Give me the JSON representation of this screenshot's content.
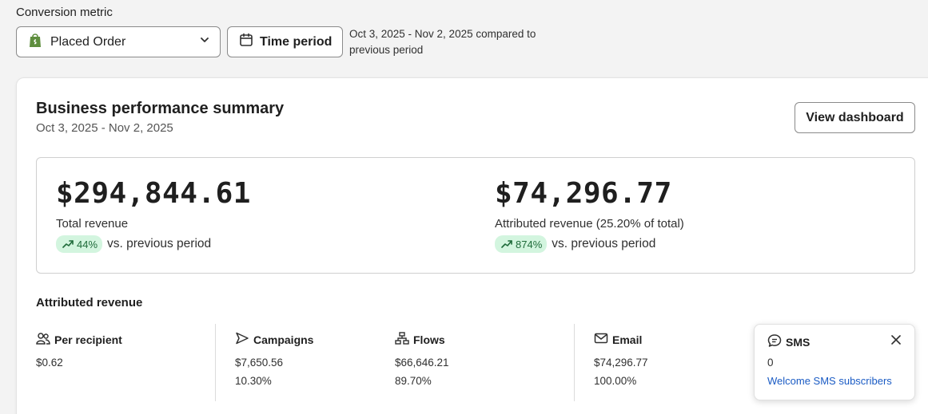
{
  "header": {
    "conversion_label": "Conversion metric",
    "metric_select": {
      "value": "Placed Order",
      "icon": "shopify-bag-icon"
    },
    "time_period_button": "Time period",
    "period_description": "Oct 3, 2025 - Nov 2, 2025 compared to previous period"
  },
  "card": {
    "title": "Business performance summary",
    "subtitle": "Oct 3, 2025 - Nov 2, 2025",
    "view_dashboard_button": "View dashboard",
    "total": {
      "value": "$294,844.61",
      "label": "Total revenue",
      "change": "44%",
      "comparison": "vs. previous period"
    },
    "attributed": {
      "value": "$74,296.77",
      "label": "Attributed revenue (25.20% of total)",
      "change": "874%",
      "comparison": "vs. previous period"
    },
    "attributed_heading": "Attributed revenue",
    "columns": [
      {
        "title": "Per recipient",
        "icon": "people-icon",
        "value": "$0.62",
        "percent": ""
      },
      {
        "title": "Campaigns",
        "icon": "send-icon",
        "value": "$7,650.56",
        "percent": "10.30%"
      },
      {
        "title": "Flows",
        "icon": "flow-icon",
        "value": "$66,646.21",
        "percent": "89.70%"
      },
      {
        "title": "Email",
        "icon": "mail-icon",
        "value": "$74,296.77",
        "percent": "100.00%"
      }
    ],
    "sms": {
      "title": "SMS",
      "value": "0",
      "link": "Welcome SMS subscribers"
    }
  },
  "colors": {
    "badge_bg": "#d3f5df",
    "badge_text": "#1f6b3a",
    "link": "#1a5bc4",
    "shopify_green": "#5e8e3e"
  }
}
